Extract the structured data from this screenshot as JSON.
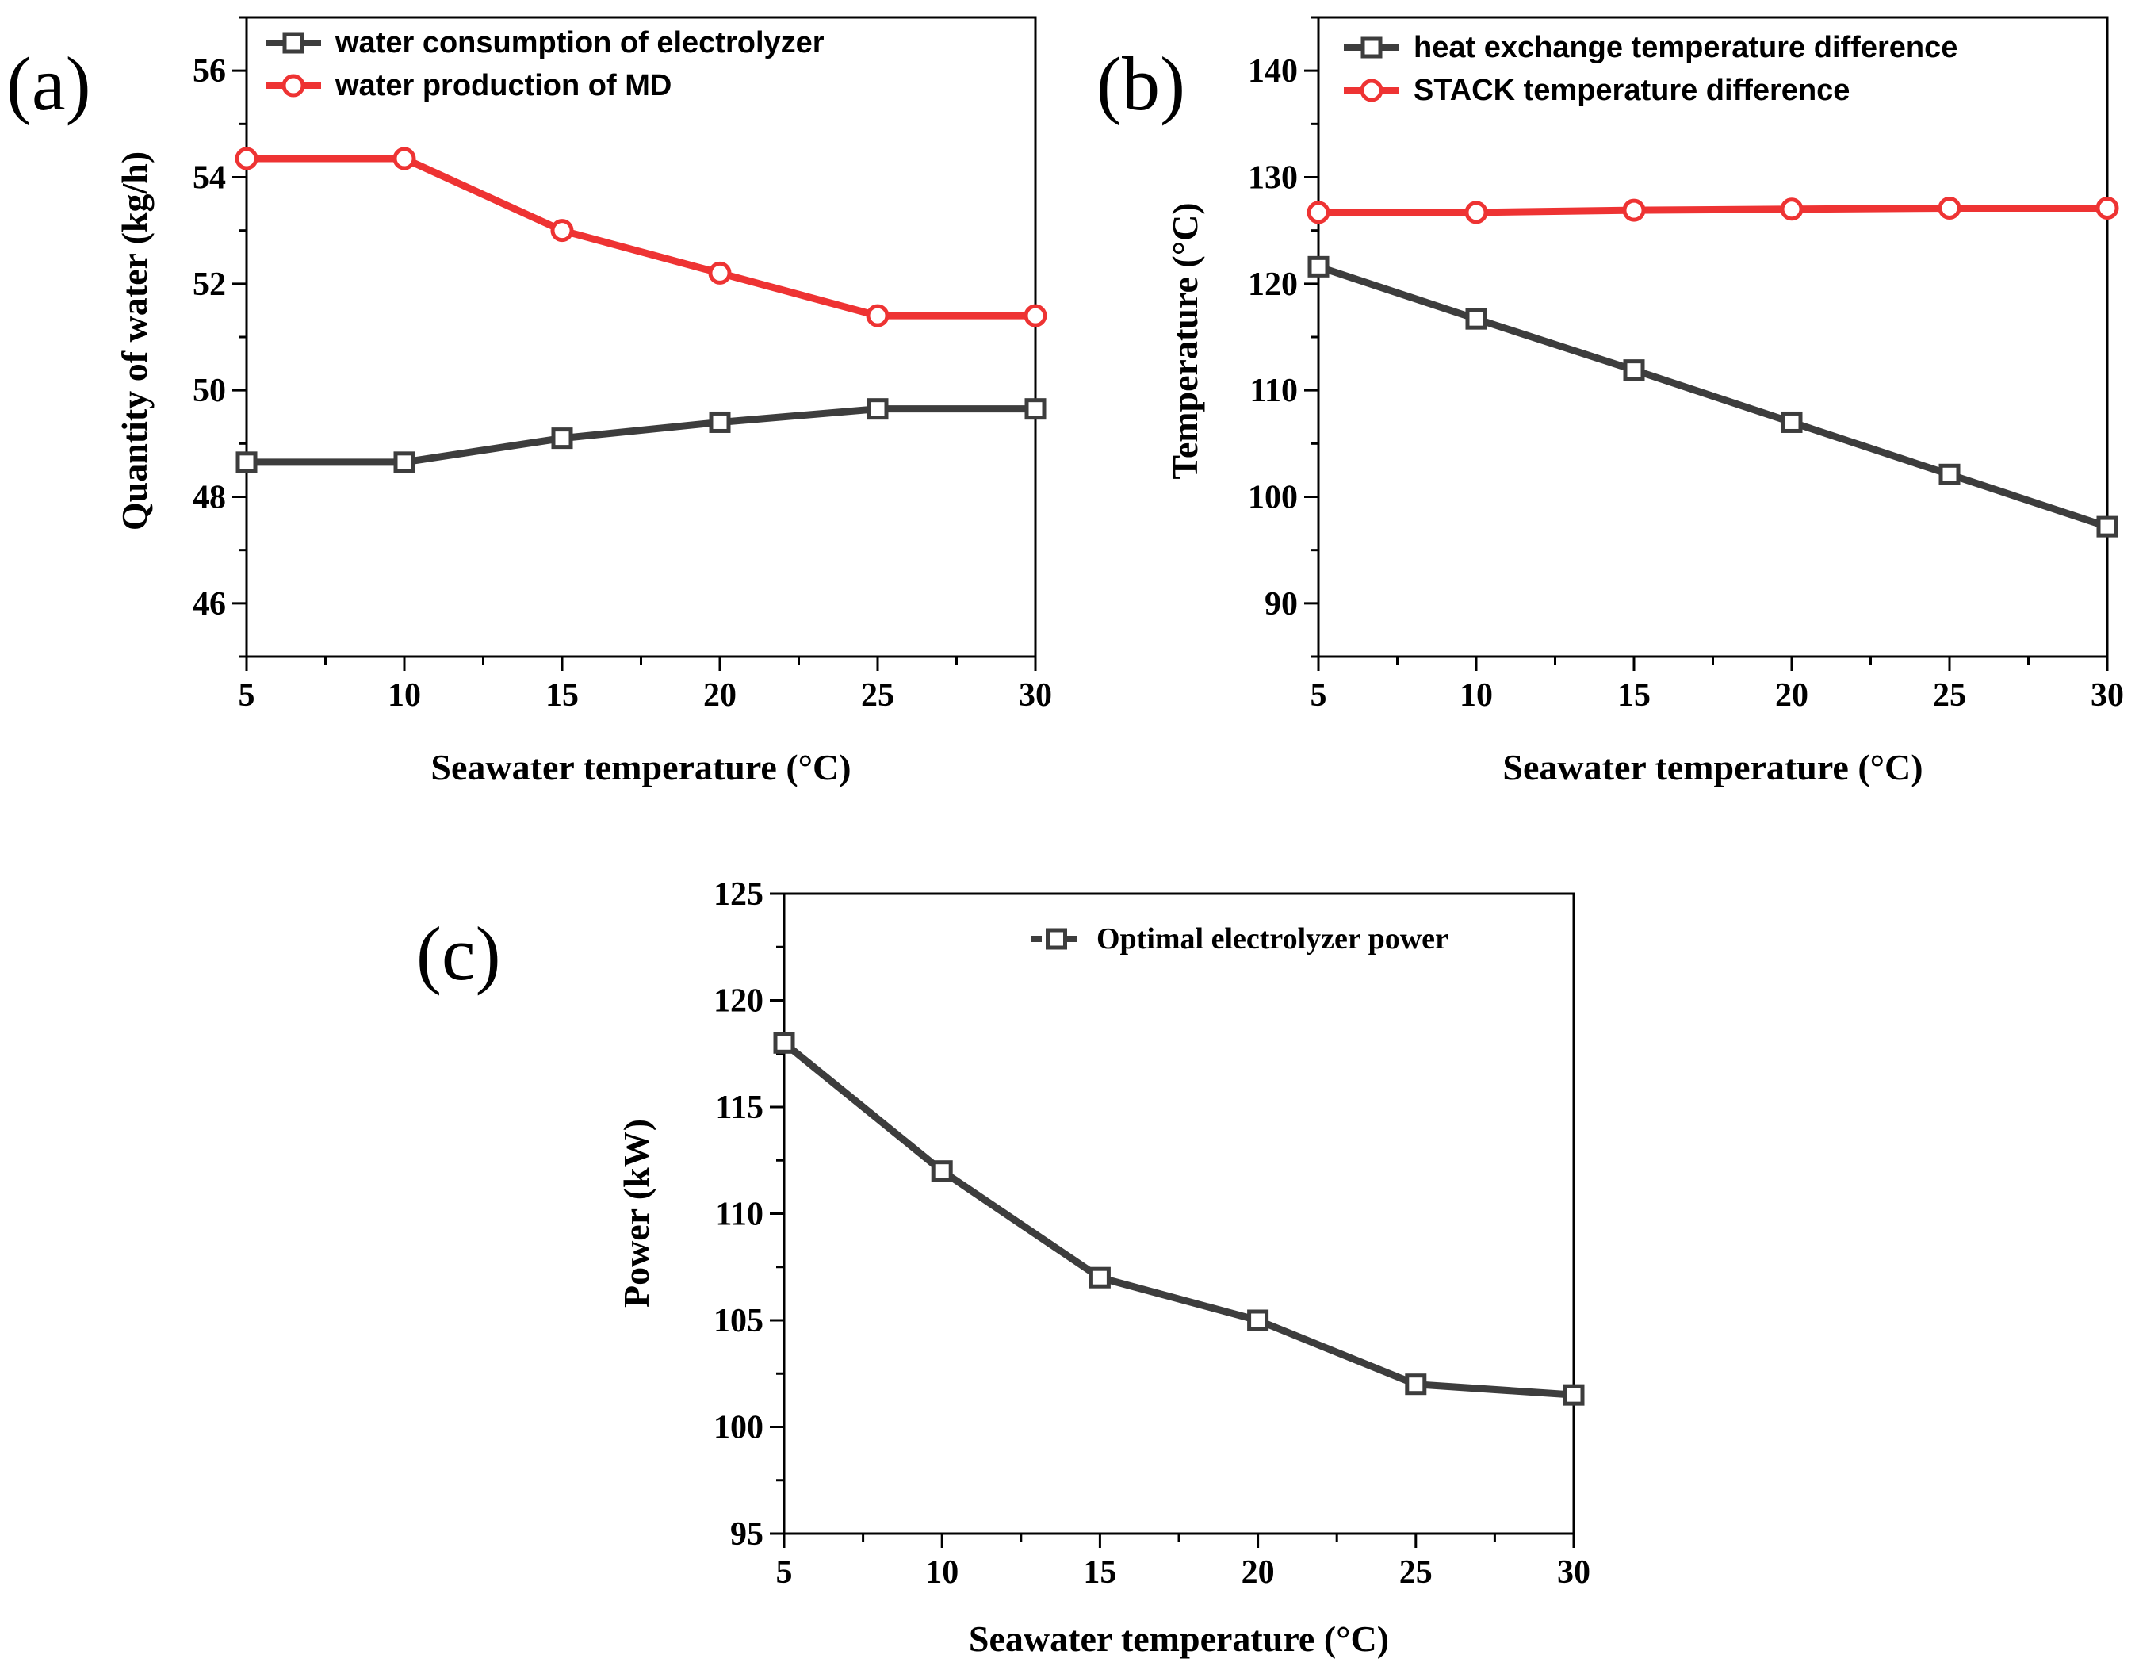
{
  "chart_data": [
    {
      "id": "a",
      "type": "line",
      "panel_label": "(a)",
      "xlabel": "Seawater temperature (°C)",
      "ylabel": "Quantity of water (kg/h)",
      "x": [
        5,
        10,
        15,
        20,
        25,
        30
      ],
      "xticks": [
        "5",
        "10",
        "15",
        "20",
        "25",
        "30"
      ],
      "xlim": [
        5,
        30
      ],
      "ylim": [
        45,
        57
      ],
      "yticks": [
        "46",
        "48",
        "50",
        "52",
        "54",
        "56"
      ],
      "series": [
        {
          "name": "water consumption of electrolyzer",
          "color": "#3d3d3d",
          "marker": "square",
          "values": [
            48.65,
            48.65,
            49.1,
            49.4,
            49.65,
            49.65
          ]
        },
        {
          "name": "water production of MD",
          "color": "#ee3333",
          "marker": "circle",
          "values": [
            54.35,
            54.35,
            53.0,
            52.2,
            51.4,
            51.4
          ]
        }
      ],
      "legend": "top-left"
    },
    {
      "id": "b",
      "type": "line",
      "panel_label": "(b)",
      "xlabel": "Seawater temperature (°C)",
      "ylabel": "Temperature (°C)",
      "x": [
        5,
        10,
        15,
        20,
        25,
        30
      ],
      "xticks": [
        "5",
        "10",
        "15",
        "20",
        "25",
        "30"
      ],
      "xlim": [
        5,
        30
      ],
      "ylim": [
        85,
        145
      ],
      "yticks": [
        "90",
        "100",
        "110",
        "120",
        "130",
        "140"
      ],
      "series": [
        {
          "name": "heat exchange temperature difference",
          "color": "#3d3d3d",
          "marker": "square",
          "values": [
            121.6,
            116.7,
            111.9,
            107.0,
            102.1,
            97.2
          ]
        },
        {
          "name": "STACK temperature difference",
          "color": "#ee3333",
          "marker": "circle",
          "values": [
            126.7,
            126.7,
            126.9,
            127.0,
            127.1,
            127.1
          ]
        }
      ],
      "legend": "top-left"
    },
    {
      "id": "c",
      "type": "line",
      "panel_label": "(c)",
      "xlabel": "Seawater temperature (°C)",
      "ylabel": "Power (kW)",
      "x": [
        5,
        10,
        15,
        20,
        25,
        30
      ],
      "xticks": [
        "5",
        "10",
        "15",
        "20",
        "25",
        "30"
      ],
      "xlim": [
        5,
        30
      ],
      "ylim": [
        95,
        125
      ],
      "yticks": [
        "95",
        "100",
        "105",
        "110",
        "115",
        "120",
        "125"
      ],
      "series": [
        {
          "name": "Optimal electrolyzer power",
          "color": "#3d3d3d",
          "marker": "square",
          "values": [
            118,
            112,
            107,
            105,
            102,
            101.5
          ]
        }
      ],
      "legend": "top-right"
    }
  ]
}
